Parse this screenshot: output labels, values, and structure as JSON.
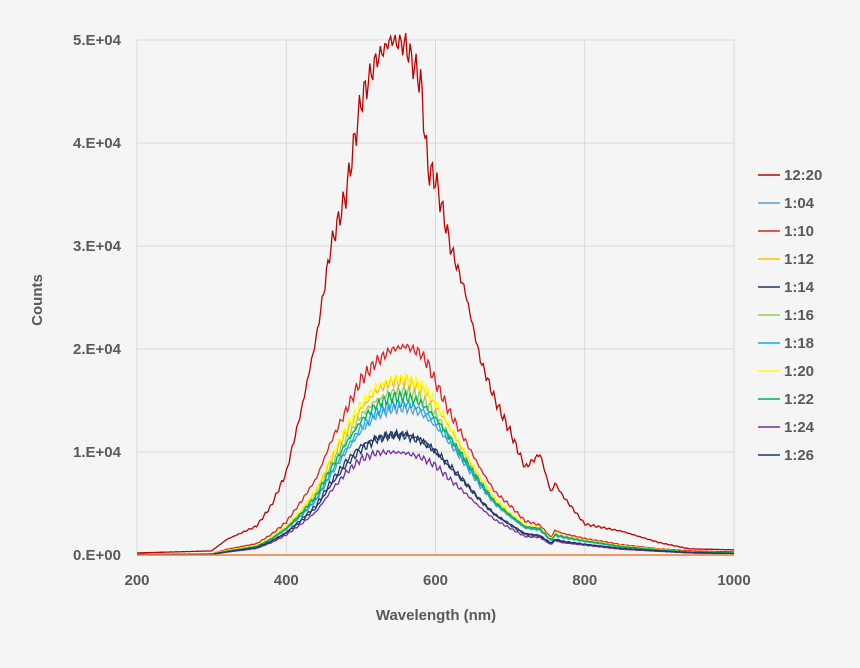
{
  "chart_data": {
    "type": "line",
    "title": "",
    "xlabel": "Wavelength (nm)",
    "ylabel": "Counts",
    "xlim": [
      200,
      1000
    ],
    "ylim": [
      0,
      50000
    ],
    "x_ticks": [
      "200",
      "400",
      "600",
      "800",
      "1000"
    ],
    "y_ticks": [
      "0.E+00",
      "1.E+04",
      "2.E+04",
      "3.E+04",
      "4.E+04",
      "5.E+04"
    ],
    "grid": "vertical and horizontal",
    "legend_position": "right",
    "x": [
      200,
      300,
      320,
      360,
      380,
      400,
      420,
      440,
      460,
      480,
      500,
      520,
      540,
      560,
      580,
      590,
      600,
      620,
      640,
      660,
      680,
      700,
      720,
      740,
      755,
      760,
      770,
      800,
      850,
      900,
      940,
      1000
    ],
    "series": [
      {
        "name": "12:20",
        "color": "#c00000",
        "values": [
          200,
          400,
          1500,
          2800,
          4800,
          8000,
          14000,
          21000,
          30000,
          35000,
          44000,
          48000,
          50000,
          49500,
          46000,
          37500,
          36500,
          30000,
          25500,
          19000,
          15000,
          12000,
          8500,
          9800,
          6000,
          7000,
          5800,
          3000,
          2300,
          1200,
          600,
          500
        ]
      },
      {
        "name": "1:04",
        "color": "#5b9bd5",
        "values": [
          50,
          80,
          350,
          800,
          1500,
          2500,
          3800,
          5300,
          7800,
          10000,
          12000,
          13500,
          14200,
          14300,
          13800,
          13200,
          12500,
          10800,
          8800,
          6700,
          4900,
          3700,
          2600,
          2400,
          1400,
          1900,
          1700,
          1300,
          800,
          500,
          300,
          200
        ]
      },
      {
        "name": "1:10",
        "color": "#e02020",
        "values": [
          50,
          100,
          550,
          1100,
          2000,
          3200,
          5200,
          7400,
          11000,
          14000,
          17000,
          18700,
          19900,
          20300,
          19600,
          18500,
          16800,
          13700,
          11100,
          8400,
          6100,
          4800,
          3300,
          2900,
          1700,
          2400,
          2100,
          1600,
          1000,
          600,
          400,
          300
        ]
      },
      {
        "name": "1:12",
        "color": "#ffc000",
        "values": [
          50,
          90,
          420,
          900,
          1650,
          2700,
          4300,
          6200,
          9200,
          11900,
          14200,
          15900,
          16800,
          16900,
          16200,
          15500,
          14500,
          12200,
          9800,
          7400,
          5400,
          4000,
          2800,
          2600,
          1500,
          2100,
          1800,
          1400,
          900,
          500,
          300,
          200
        ]
      },
      {
        "name": "1:14",
        "color": "#1f3864",
        "values": [
          40,
          70,
          300,
          700,
          1300,
          2100,
          3300,
          4600,
          6800,
          8700,
          10200,
          11200,
          11600,
          11700,
          11200,
          10700,
          10100,
          8600,
          7000,
          5300,
          3900,
          2900,
          2000,
          1800,
          1100,
          1500,
          1300,
          1000,
          600,
          400,
          200,
          150
        ]
      },
      {
        "name": "1:16",
        "color": "#92d050",
        "values": [
          50,
          85,
          390,
          860,
          1600,
          2600,
          4100,
          5900,
          8700,
          11200,
          13500,
          15000,
          15800,
          15900,
          15300,
          14600,
          13700,
          11500,
          9300,
          7000,
          5100,
          3900,
          2700,
          2500,
          1500,
          2000,
          1800,
          1400,
          850,
          500,
          300,
          200
        ]
      },
      {
        "name": "1:18",
        "color": "#00b0f0",
        "values": [
          50,
          80,
          360,
          820,
          1550,
          2550,
          3900,
          5500,
          8000,
          10300,
          12400,
          13900,
          14600,
          14700,
          14200,
          13600,
          12900,
          11100,
          9000,
          6900,
          5000,
          3800,
          2700,
          2500,
          1400,
          1950,
          1750,
          1350,
          800,
          500,
          300,
          200
        ]
      },
      {
        "name": "1:20",
        "color": "#ffff00",
        "values": [
          50,
          95,
          440,
          920,
          1700,
          2800,
          4400,
          6400,
          9500,
          12200,
          14600,
          16300,
          17100,
          17200,
          16500,
          15800,
          14800,
          12400,
          10000,
          7600,
          5500,
          4100,
          2900,
          2700,
          1550,
          2150,
          1850,
          1450,
          900,
          550,
          300,
          200
        ]
      },
      {
        "name": "1:22",
        "color": "#00b050",
        "values": [
          50,
          82,
          370,
          840,
          1580,
          2580,
          4000,
          5700,
          8400,
          10800,
          13000,
          14500,
          15300,
          15400,
          14800,
          14100,
          13300,
          11300,
          9200,
          7000,
          5100,
          3900,
          2750,
          2550,
          1450,
          2000,
          1800,
          1380,
          830,
          500,
          300,
          200
        ]
      },
      {
        "name": "1:24",
        "color": "#7030a0",
        "values": [
          40,
          60,
          270,
          630,
          1200,
          1950,
          3000,
          4200,
          6200,
          8000,
          9300,
          9900,
          10000,
          9900,
          9500,
          9100,
          8700,
          7300,
          6000,
          4600,
          3400,
          2600,
          1800,
          1700,
          1000,
          1400,
          1200,
          950,
          550,
          350,
          200,
          150
        ]
      },
      {
        "name": "1:26",
        "color": "#203864",
        "values": [
          45,
          75,
          320,
          720,
          1350,
          2200,
          3450,
          4800,
          7100,
          9100,
          10600,
          11300,
          11700,
          11600,
          11100,
          10600,
          10000,
          8500,
          7000,
          5300,
          3900,
          3000,
          2100,
          1900,
          1150,
          1550,
          1350,
          1050,
          650,
          400,
          250,
          150
        ]
      }
    ],
    "baseline_color": "#ed7d31"
  }
}
